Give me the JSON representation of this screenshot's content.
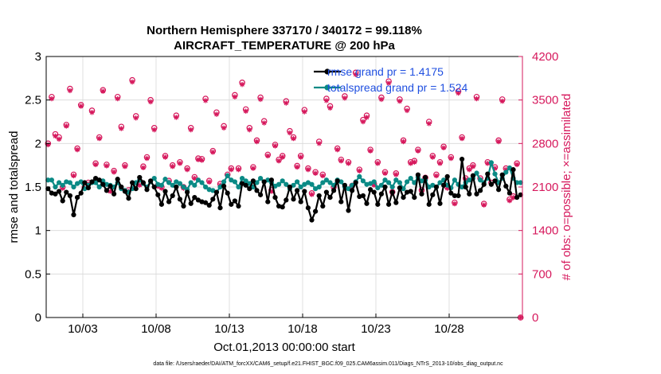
{
  "chart_data": {
    "type": "line",
    "title": [
      "Northern Hemisphere 337170 / 340172 = 99.118%",
      "AIRCRAFT_TEMPERATURE @ 200 hPa"
    ],
    "xlabel": "Oct.01,2013 00:00:00 start",
    "ylabel": "rmse and totalspread",
    "y2label": "# of obs: o=possible; ×=assimilated",
    "xlim": [
      0.5,
      33.0
    ],
    "ylim": [
      0,
      3
    ],
    "y2lim": [
      0,
      4200
    ],
    "x_ticks": [
      {
        "x": 3,
        "label": "10/03"
      },
      {
        "x": 8,
        "label": "10/08"
      },
      {
        "x": 13,
        "label": "10/13"
      },
      {
        "x": 18,
        "label": "10/18"
      },
      {
        "x": 23,
        "label": "10/23"
      },
      {
        "x": 28,
        "label": "10/28"
      }
    ],
    "y_ticks": [
      "0",
      "0.5",
      "1",
      "1.5",
      "2",
      "2.5",
      "3"
    ],
    "y2_ticks": [
      "0",
      "700",
      "1400",
      "2100",
      "2800",
      "3500",
      "4200"
    ],
    "grid": true,
    "legend_position": "top-right",
    "colors": {
      "rmse": "#000000",
      "spread": "#0a8a85",
      "obs": "#d6185c",
      "legend_text": "#1f4fe0"
    },
    "series": [
      {
        "name": "rmse grand pr = 1.4175",
        "color": "#000000",
        "marker": "filled-circle",
        "x": [
          0.625,
          0.875,
          1.125,
          1.375,
          1.625,
          1.875,
          2.125,
          2.375,
          2.625,
          2.875,
          3.125,
          3.375,
          3.625,
          3.875,
          4.125,
          4.375,
          4.625,
          4.875,
          5.125,
          5.375,
          5.625,
          5.875,
          6.125,
          6.375,
          6.625,
          6.875,
          7.125,
          7.375,
          7.625,
          7.875,
          8.125,
          8.375,
          8.625,
          8.875,
          9.125,
          9.375,
          9.625,
          9.875,
          10.125,
          10.375,
          10.625,
          10.875,
          11.125,
          11.375,
          11.625,
          11.875,
          12.125,
          12.375,
          12.625,
          12.875,
          13.125,
          13.375,
          13.625,
          13.875,
          14.125,
          14.375,
          14.625,
          14.875,
          15.125,
          15.375,
          15.625,
          15.875,
          16.125,
          16.375,
          16.625,
          16.875,
          17.125,
          17.375,
          17.625,
          17.875,
          18.125,
          18.375,
          18.625,
          18.875,
          19.125,
          19.375,
          19.625,
          19.875,
          20.125,
          20.375,
          20.625,
          20.875,
          21.125,
          21.375,
          21.625,
          21.875,
          22.125,
          22.375,
          22.625,
          22.875,
          23.125,
          23.375,
          23.625,
          23.875,
          24.125,
          24.375,
          24.625,
          24.875,
          25.125,
          25.375,
          25.625,
          25.875,
          26.125,
          26.375,
          26.625,
          26.875,
          27.125,
          27.375,
          27.625,
          27.875,
          28.125,
          28.375,
          28.625,
          28.875,
          29.125,
          29.375,
          29.625,
          29.875,
          30.125,
          30.375,
          30.625,
          30.875,
          31.125,
          31.375,
          31.625,
          31.875,
          32.125,
          32.375,
          32.625,
          32.875
        ],
        "y": [
          1.48,
          1.43,
          1.42,
          1.45,
          1.34,
          1.44,
          1.4,
          1.18,
          1.38,
          1.43,
          1.55,
          1.49,
          1.56,
          1.6,
          1.58,
          1.53,
          1.46,
          1.51,
          1.42,
          1.59,
          1.5,
          1.45,
          1.37,
          1.55,
          1.48,
          1.61,
          1.55,
          1.47,
          1.57,
          1.5,
          1.41,
          1.3,
          1.45,
          1.33,
          1.4,
          1.5,
          1.36,
          1.28,
          1.44,
          1.31,
          1.38,
          1.35,
          1.33,
          1.32,
          1.29,
          1.36,
          1.44,
          1.26,
          1.51,
          1.43,
          1.3,
          1.34,
          1.28,
          1.54,
          1.52,
          1.48,
          1.57,
          1.46,
          1.41,
          1.56,
          1.33,
          1.58,
          1.38,
          1.28,
          1.27,
          1.35,
          1.5,
          1.36,
          1.46,
          1.33,
          1.45,
          1.26,
          1.12,
          1.22,
          1.4,
          1.28,
          1.44,
          1.38,
          1.46,
          1.57,
          1.33,
          1.52,
          1.23,
          1.46,
          1.55,
          1.39,
          1.4,
          1.31,
          1.47,
          1.44,
          1.3,
          1.42,
          1.5,
          1.3,
          1.44,
          1.32,
          1.49,
          1.38,
          1.44,
          1.45,
          1.38,
          1.64,
          1.42,
          1.61,
          1.3,
          1.41,
          1.5,
          1.31,
          1.52,
          1.62,
          1.43,
          1.4,
          1.4,
          1.82,
          1.5,
          1.42,
          1.63,
          1.42,
          1.46,
          1.53,
          1.65,
          1.53,
          1.57,
          1.47,
          1.64,
          1.51,
          1.43,
          1.7,
          1.38,
          1.41
        ]
      },
      {
        "name": "totalspread grand pr = 1.524",
        "color": "#0a8a85",
        "marker": "filled-circle",
        "x": [
          0.625,
          0.875,
          1.125,
          1.375,
          1.625,
          1.875,
          2.125,
          2.375,
          2.625,
          2.875,
          3.125,
          3.375,
          3.625,
          3.875,
          4.125,
          4.375,
          4.625,
          4.875,
          5.125,
          5.375,
          5.625,
          5.875,
          6.125,
          6.375,
          6.625,
          6.875,
          7.125,
          7.375,
          7.625,
          7.875,
          8.125,
          8.375,
          8.625,
          8.875,
          9.125,
          9.375,
          9.625,
          9.875,
          10.125,
          10.375,
          10.625,
          10.875,
          11.125,
          11.375,
          11.625,
          11.875,
          12.125,
          12.375,
          12.625,
          12.875,
          13.125,
          13.375,
          13.625,
          13.875,
          14.125,
          14.375,
          14.625,
          14.875,
          15.125,
          15.375,
          15.625,
          15.875,
          16.125,
          16.375,
          16.625,
          16.875,
          17.125,
          17.375,
          17.625,
          17.875,
          18.125,
          18.375,
          18.625,
          18.875,
          19.125,
          19.375,
          19.625,
          19.875,
          20.125,
          20.375,
          20.625,
          20.875,
          21.125,
          21.375,
          21.625,
          21.875,
          22.125,
          22.375,
          22.625,
          22.875,
          23.125,
          23.375,
          23.625,
          23.875,
          24.125,
          24.375,
          24.625,
          24.875,
          25.125,
          25.375,
          25.625,
          25.875,
          26.125,
          26.375,
          26.625,
          26.875,
          27.125,
          27.375,
          27.625,
          27.875,
          28.125,
          28.375,
          28.625,
          28.875,
          29.125,
          29.375,
          29.625,
          29.875,
          30.125,
          30.375,
          30.625,
          30.875,
          31.125,
          31.375,
          31.625,
          31.875,
          32.125,
          32.375,
          32.625,
          32.875
        ],
        "y": [
          1.58,
          1.58,
          1.5,
          1.55,
          1.52,
          1.56,
          1.55,
          1.5,
          1.54,
          1.56,
          1.48,
          1.52,
          1.55,
          1.55,
          1.5,
          1.57,
          1.53,
          1.52,
          1.5,
          1.55,
          1.48,
          1.46,
          1.44,
          1.48,
          1.55,
          1.58,
          1.54,
          1.5,
          1.56,
          1.6,
          1.53,
          1.52,
          1.59,
          1.55,
          1.52,
          1.56,
          1.54,
          1.5,
          1.47,
          1.55,
          1.52,
          1.58,
          1.55,
          1.5,
          1.47,
          1.46,
          1.44,
          1.5,
          1.56,
          1.63,
          1.58,
          1.56,
          1.5,
          1.6,
          1.57,
          1.54,
          1.5,
          1.55,
          1.6,
          1.56,
          1.58,
          1.55,
          1.51,
          1.53,
          1.57,
          1.53,
          1.48,
          1.52,
          1.56,
          1.5,
          1.53,
          1.55,
          1.53,
          1.48,
          1.5,
          1.55,
          1.58,
          1.55,
          1.52,
          1.58,
          1.56,
          1.5,
          1.48,
          1.52,
          1.56,
          1.62,
          1.57,
          1.53,
          1.54,
          1.56,
          1.49,
          1.52,
          1.58,
          1.55,
          1.5,
          1.58,
          1.55,
          1.48,
          1.56,
          1.6,
          1.55,
          1.61,
          1.57,
          1.58,
          1.5,
          1.52,
          1.5,
          1.55,
          1.58,
          1.52,
          1.49,
          1.58,
          1.53,
          1.5,
          1.55,
          1.58,
          1.6,
          1.66,
          1.58,
          1.55,
          1.6,
          1.78,
          1.65,
          1.55,
          1.6,
          1.67,
          1.72,
          1.6,
          1.55,
          1.55
        ]
      },
      {
        "name": "# of obs: o=possible; ×=assimilated",
        "axis": "right",
        "color": "#d6185c",
        "marker": "circle-and-star",
        "x": [
          0.625,
          0.875,
          1.125,
          1.375,
          1.625,
          1.875,
          2.125,
          2.375,
          2.625,
          2.875,
          3.125,
          3.375,
          3.625,
          3.875,
          4.125,
          4.375,
          4.625,
          4.875,
          5.125,
          5.375,
          5.625,
          5.875,
          6.125,
          6.375,
          6.625,
          6.875,
          7.125,
          7.375,
          7.625,
          7.875,
          8.125,
          8.375,
          8.625,
          8.875,
          9.125,
          9.375,
          9.625,
          9.875,
          10.125,
          10.375,
          10.625,
          10.875,
          11.125,
          11.375,
          11.625,
          11.875,
          12.125,
          12.375,
          12.625,
          12.875,
          13.125,
          13.375,
          13.625,
          13.875,
          14.125,
          14.375,
          14.625,
          14.875,
          15.125,
          15.375,
          15.625,
          15.875,
          16.125,
          16.375,
          16.625,
          16.875,
          17.125,
          17.375,
          17.625,
          17.875,
          18.125,
          18.375,
          18.625,
          18.875,
          19.125,
          19.375,
          19.625,
          19.875,
          20.125,
          20.375,
          20.625,
          20.875,
          21.125,
          21.375,
          21.625,
          21.875,
          22.125,
          22.375,
          22.625,
          22.875,
          23.125,
          23.375,
          23.625,
          23.875,
          24.125,
          24.375,
          24.625,
          24.875,
          25.125,
          25.375,
          25.625,
          25.875,
          26.125,
          26.375,
          26.625,
          26.875,
          27.125,
          27.375,
          27.625,
          27.875,
          28.125,
          28.375,
          28.625,
          28.875,
          29.125,
          29.375,
          29.625,
          29.875,
          30.125,
          30.375,
          30.625,
          30.875,
          31.125,
          31.375,
          31.625,
          31.875,
          32.125,
          32.375,
          32.625,
          32.875
        ],
        "possible": [
          2800,
          3550,
          2950,
          2900,
          2100,
          3100,
          3680,
          2300,
          2720,
          3420,
          2100,
          2170,
          3330,
          2480,
          2900,
          3660,
          2460,
          2050,
          2360,
          3550,
          3070,
          2450,
          2050,
          3820,
          3240,
          2150,
          2430,
          2580,
          3500,
          3050,
          2130,
          2100,
          2600,
          2200,
          2450,
          3250,
          2500,
          2100,
          2400,
          3050,
          2260,
          2560,
          2550,
          3520,
          2200,
          2680,
          3300,
          2150,
          3080,
          2300,
          2400,
          3580,
          2400,
          3780,
          3350,
          3050,
          2420,
          2850,
          3540,
          3160,
          2620,
          2050,
          2780,
          2540,
          2600,
          3480,
          3000,
          2900,
          2440,
          2600,
          3340,
          2400,
          2000,
          2340,
          2830,
          2300,
          3520,
          3400,
          2100,
          2720,
          2540,
          3560,
          2500,
          2120,
          3940,
          2380,
          3180,
          3250,
          2700,
          2150,
          2500,
          3540,
          2340,
          3800,
          2020,
          2320,
          3510,
          2850,
          3360,
          2500,
          2520,
          2700,
          2050,
          2250,
          3150,
          2600,
          2300,
          2500,
          2750,
          2100,
          2580,
          1850,
          3640,
          2900,
          2240,
          2400,
          2450,
          3550,
          2240,
          1830,
          2500,
          2170,
          2420,
          2850,
          3510,
          2400,
          1900,
          1950,
          2480,
          0
        ],
        "assimilated": [
          2780,
          3520,
          2920,
          2870,
          2080,
          3080,
          3650,
          2280,
          2700,
          3400,
          2080,
          2150,
          3300,
          2460,
          2880,
          3640,
          2440,
          2030,
          2340,
          3520,
          3040,
          2430,
          2030,
          3790,
          3210,
          2130,
          2410,
          2560,
          3470,
          3020,
          2110,
          2080,
          2580,
          2180,
          2430,
          3220,
          2480,
          2080,
          2380,
          3020,
          2240,
          2540,
          2530,
          3490,
          2180,
          2660,
          3270,
          2130,
          3050,
          2280,
          2380,
          3550,
          2380,
          3750,
          3320,
          3020,
          2400,
          2830,
          3510,
          3130,
          2600,
          2030,
          2760,
          2520,
          2580,
          3450,
          2970,
          2880,
          2420,
          2580,
          3310,
          2380,
          1980,
          2320,
          2800,
          2280,
          3490,
          3370,
          2080,
          2700,
          2520,
          3530,
          2480,
          2100,
          3910,
          2360,
          3150,
          3220,
          2680,
          2130,
          2480,
          3510,
          2320,
          3770,
          2000,
          2300,
          3480,
          2830,
          3330,
          2480,
          2500,
          2680,
          2030,
          2230,
          3120,
          2580,
          2280,
          2480,
          2730,
          2080,
          2560,
          1830,
          3610,
          2880,
          2220,
          2380,
          2430,
          3520,
          2220,
          1810,
          2480,
          2150,
          2400,
          2830,
          3480,
          2380,
          1880,
          1930,
          2460,
          0
        ]
      }
    ]
  },
  "footer": "data file: /Users/raeder/DAI/ATM_forcXX/CAM6_setup/f.e21.FHIST_BGC.f09_025.CAM6assim.011/Diags_NTrS_2013-10/obs_diag_output.nc"
}
